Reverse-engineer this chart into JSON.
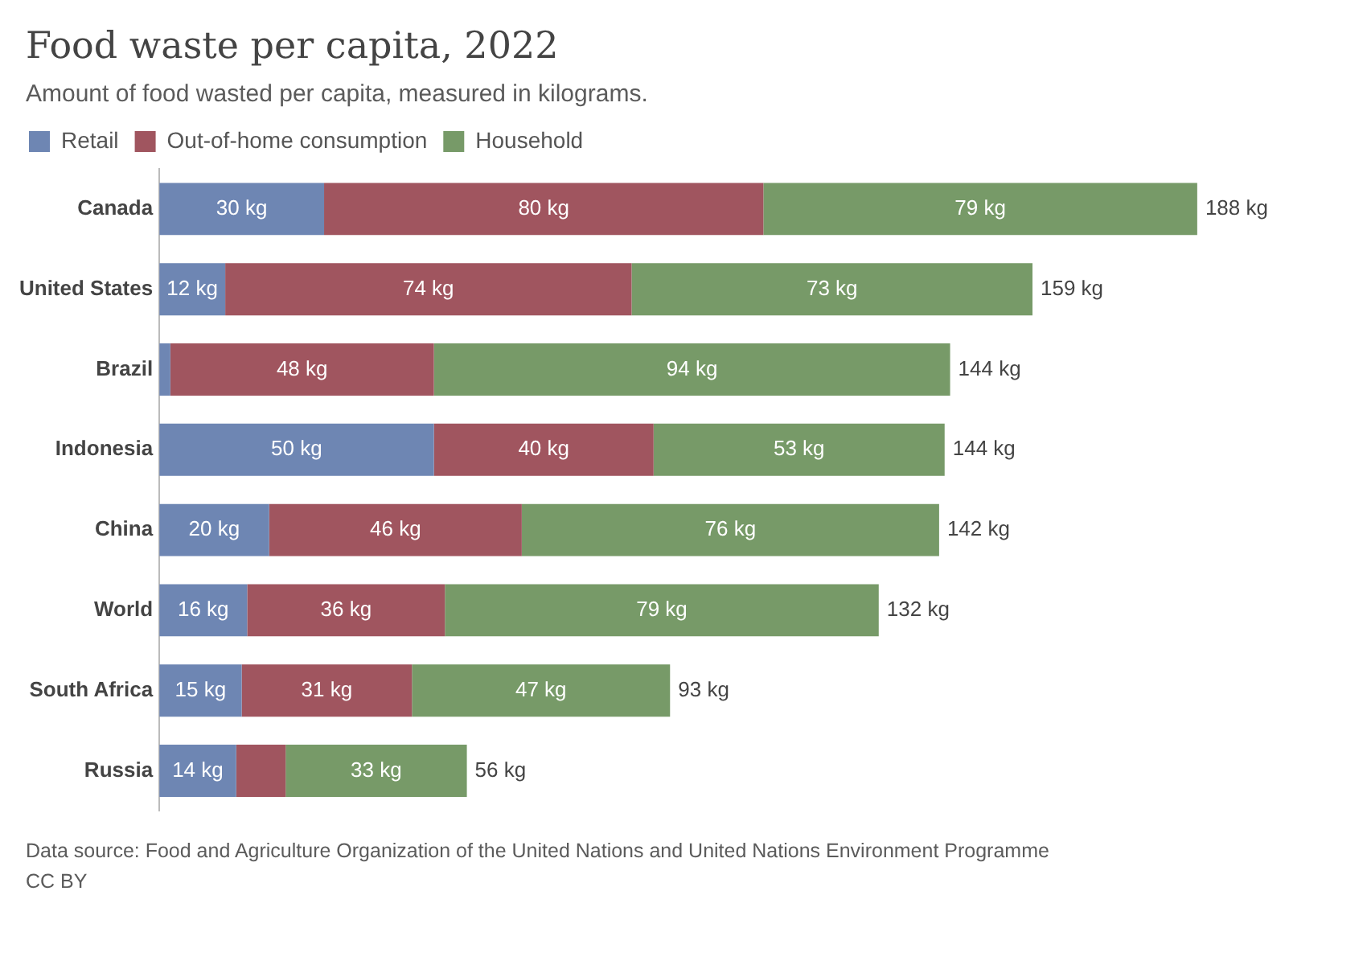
{
  "chart_data": {
    "type": "bar",
    "orientation": "horizontal",
    "stacked": true,
    "title": "Food waste per capita, 2022",
    "subtitle": "Amount of food wasted per capita, measured in kilograms.",
    "categories": [
      "Canada",
      "United States",
      "Brazil",
      "Indonesia",
      "China",
      "World",
      "South Africa",
      "Russia"
    ],
    "series": [
      {
        "name": "Retail",
        "color": "#6e86b3",
        "values": [
          30,
          12,
          2,
          50,
          20,
          16,
          15,
          14
        ],
        "value_labels": [
          "30 kg",
          "12 kg",
          null,
          "50 kg",
          "20 kg",
          "16 kg",
          "15 kg",
          "14 kg"
        ]
      },
      {
        "name": "Out-of-home consumption",
        "color": "#a0555f",
        "values": [
          80,
          74,
          48,
          40,
          46,
          36,
          31,
          9
        ],
        "value_labels": [
          "80 kg",
          "74 kg",
          "48 kg",
          "40 kg",
          "46 kg",
          "36 kg",
          "31 kg",
          null
        ]
      },
      {
        "name": "Household",
        "color": "#779a68",
        "values": [
          79,
          73,
          94,
          53,
          76,
          79,
          47,
          33
        ],
        "value_labels": [
          "79 kg",
          "73 kg",
          "94 kg",
          "53 kg",
          "76 kg",
          "79 kg",
          "47 kg",
          "33 kg"
        ]
      }
    ],
    "totals": [
      "188 kg",
      "159 kg",
      "144 kg",
      "144 kg",
      "142 kg",
      "132 kg",
      "93 kg",
      "56 kg"
    ],
    "legend": "top left",
    "grid": false,
    "tick_labels": "y",
    "annotations": [
      "Data source: Food and Agriculture Organization of the United Nations and United Nations Environment Programme",
      "CC BY"
    ]
  }
}
